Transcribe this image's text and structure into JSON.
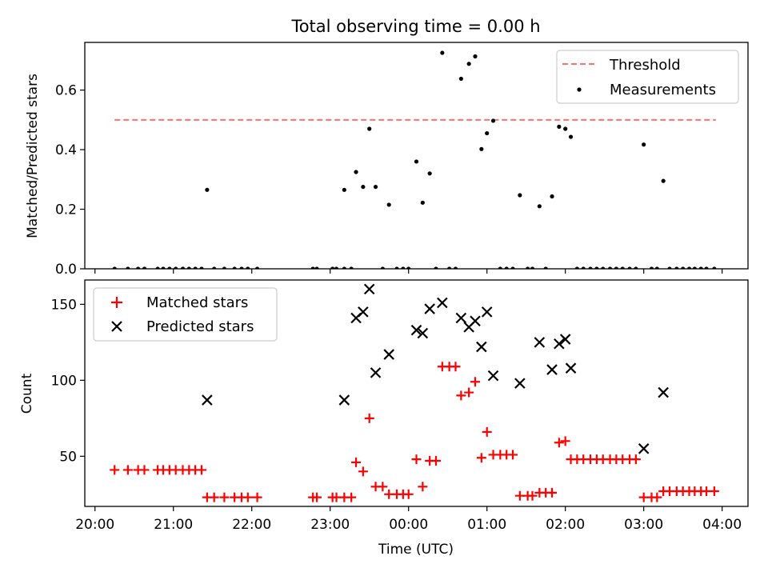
{
  "chart_data": [
    {
      "type": "scatter",
      "title": "Total observing time = 0.00 h",
      "xlabel": "",
      "ylabel": "Matched/Predicted stars",
      "ylim": [
        0,
        0.76
      ],
      "yticks": [
        "0.0",
        "0.2",
        "0.4",
        "0.6"
      ],
      "legend": {
        "placement": "top-right",
        "entries": [
          "Threshold",
          "Measurements"
        ]
      },
      "threshold": {
        "name": "Threshold",
        "value": 0.5,
        "x_start_h": 20.25,
        "x_end_h": 27.92,
        "color": "#ff7070",
        "style": "dashed"
      },
      "series": [
        {
          "name": "Measurements",
          "color": "#000000",
          "points": [
            [
              20.25,
              0
            ],
            [
              20.42,
              0
            ],
            [
              20.55,
              0
            ],
            [
              20.63,
              0
            ],
            [
              20.8,
              0
            ],
            [
              20.87,
              0
            ],
            [
              20.95,
              0
            ],
            [
              21.03,
              0
            ],
            [
              21.12,
              0
            ],
            [
              21.2,
              0
            ],
            [
              21.28,
              0
            ],
            [
              21.36,
              0
            ],
            [
              21.43,
              0.265
            ],
            [
              21.52,
              0
            ],
            [
              21.65,
              0
            ],
            [
              21.78,
              0
            ],
            [
              21.87,
              0
            ],
            [
              21.95,
              0
            ],
            [
              22.07,
              0
            ],
            [
              22.78,
              0
            ],
            [
              22.83,
              0
            ],
            [
              23.03,
              0
            ],
            [
              23.08,
              0
            ],
            [
              23.18,
              0.265
            ],
            [
              23.18,
              0
            ],
            [
              23.27,
              0
            ],
            [
              23.33,
              0.325
            ],
            [
              23.42,
              0.275
            ],
            [
              23.5,
              0.47
            ],
            [
              23.58,
              0.275
            ],
            [
              23.67,
              0
            ],
            [
              23.75,
              0.215
            ],
            [
              23.85,
              0
            ],
            [
              23.93,
              0
            ],
            [
              24.0,
              0
            ],
            [
              24.1,
              0.36
            ],
            [
              24.18,
              0.222
            ],
            [
              24.27,
              0.32
            ],
            [
              24.35,
              0
            ],
            [
              24.43,
              0.725
            ],
            [
              24.52,
              0
            ],
            [
              24.6,
              0
            ],
            [
              24.67,
              0.638
            ],
            [
              24.77,
              0.688
            ],
            [
              24.85,
              0.713
            ],
            [
              24.93,
              0.402
            ],
            [
              25.0,
              0.455
            ],
            [
              25.08,
              0.497
            ],
            [
              25.17,
              0
            ],
            [
              25.25,
              0
            ],
            [
              25.33,
              0
            ],
            [
              25.42,
              0.247
            ],
            [
              25.52,
              0
            ],
            [
              25.58,
              0
            ],
            [
              25.67,
              0.21
            ],
            [
              25.75,
              0
            ],
            [
              25.83,
              0.243
            ],
            [
              25.92,
              0.477
            ],
            [
              26.0,
              0.47
            ],
            [
              26.07,
              0.443
            ],
            [
              26.15,
              0
            ],
            [
              26.23,
              0
            ],
            [
              26.32,
              0
            ],
            [
              26.4,
              0
            ],
            [
              26.48,
              0
            ],
            [
              26.57,
              0
            ],
            [
              26.65,
              0
            ],
            [
              26.73,
              0
            ],
            [
              26.82,
              0
            ],
            [
              26.9,
              0
            ],
            [
              27.0,
              0.417
            ],
            [
              27.1,
              0
            ],
            [
              27.17,
              0
            ],
            [
              27.25,
              0.295
            ],
            [
              27.33,
              0
            ],
            [
              27.42,
              0
            ],
            [
              27.5,
              0
            ],
            [
              27.58,
              0
            ],
            [
              27.65,
              0
            ],
            [
              27.73,
              0
            ],
            [
              27.8,
              0
            ],
            [
              27.9,
              0
            ]
          ]
        }
      ]
    },
    {
      "type": "scatter",
      "title": "",
      "xlabel": "Time (UTC)",
      "ylabel": "Count",
      "ylim": [
        17,
        166
      ],
      "yticks": [
        "50",
        "100",
        "150"
      ],
      "xlim_h": [
        19.87,
        28.33
      ],
      "xticks": [
        "20:00",
        "21:00",
        "22:00",
        "23:00",
        "00:00",
        "01:00",
        "02:00",
        "03:00",
        "04:00"
      ],
      "legend": {
        "placement": "top-left",
        "entries": [
          "Matched stars",
          "Predicted stars"
        ]
      },
      "series": [
        {
          "name": "Matched stars",
          "marker": "plus",
          "color": "#ff0000",
          "points": [
            [
              20.25,
              41
            ],
            [
              20.42,
              41
            ],
            [
              20.55,
              41
            ],
            [
              20.63,
              41
            ],
            [
              20.8,
              41
            ],
            [
              20.87,
              41
            ],
            [
              20.95,
              41
            ],
            [
              21.03,
              41
            ],
            [
              21.12,
              41
            ],
            [
              21.2,
              41
            ],
            [
              21.28,
              41
            ],
            [
              21.36,
              41
            ],
            [
              21.43,
              23
            ],
            [
              21.52,
              23
            ],
            [
              21.65,
              23
            ],
            [
              21.78,
              23
            ],
            [
              21.87,
              23
            ],
            [
              21.95,
              23
            ],
            [
              22.07,
              23
            ],
            [
              22.78,
              23
            ],
            [
              22.83,
              23
            ],
            [
              23.03,
              23
            ],
            [
              23.08,
              23
            ],
            [
              23.18,
              23
            ],
            [
              23.27,
              23
            ],
            [
              23.33,
              46
            ],
            [
              23.42,
              40
            ],
            [
              23.5,
              75
            ],
            [
              23.58,
              30
            ],
            [
              23.67,
              30
            ],
            [
              23.75,
              25
            ],
            [
              23.85,
              25
            ],
            [
              23.93,
              25
            ],
            [
              24.0,
              25
            ],
            [
              24.1,
              48
            ],
            [
              24.18,
              30
            ],
            [
              24.27,
              47
            ],
            [
              24.35,
              47
            ],
            [
              24.43,
              109
            ],
            [
              24.52,
              109
            ],
            [
              24.6,
              109
            ],
            [
              24.67,
              90
            ],
            [
              24.77,
              92
            ],
            [
              24.85,
              99
            ],
            [
              24.93,
              49
            ],
            [
              25.0,
              66
            ],
            [
              25.08,
              51
            ],
            [
              25.17,
              51
            ],
            [
              25.25,
              51
            ],
            [
              25.33,
              51
            ],
            [
              25.42,
              24
            ],
            [
              25.52,
              24
            ],
            [
              25.58,
              24
            ],
            [
              25.67,
              26
            ],
            [
              25.75,
              26
            ],
            [
              25.83,
              26
            ],
            [
              25.92,
              59
            ],
            [
              26.0,
              60
            ],
            [
              26.07,
              48
            ],
            [
              26.15,
              48
            ],
            [
              26.23,
              48
            ],
            [
              26.32,
              48
            ],
            [
              26.4,
              48
            ],
            [
              26.48,
              48
            ],
            [
              26.57,
              48
            ],
            [
              26.65,
              48
            ],
            [
              26.73,
              48
            ],
            [
              26.82,
              48
            ],
            [
              26.9,
              48
            ],
            [
              27.0,
              23
            ],
            [
              27.1,
              23
            ],
            [
              27.17,
              23
            ],
            [
              27.25,
              27
            ],
            [
              27.33,
              27
            ],
            [
              27.42,
              27
            ],
            [
              27.5,
              27
            ],
            [
              27.58,
              27
            ],
            [
              27.65,
              27
            ],
            [
              27.73,
              27
            ],
            [
              27.8,
              27
            ],
            [
              27.9,
              27
            ]
          ]
        },
        {
          "name": "Predicted stars",
          "marker": "x",
          "color": "#000000",
          "points": [
            [
              21.43,
              87
            ],
            [
              23.18,
              87
            ],
            [
              23.33,
              141
            ],
            [
              23.42,
              145
            ],
            [
              23.5,
              160
            ],
            [
              23.58,
              105
            ],
            [
              23.75,
              117
            ],
            [
              24.1,
              133
            ],
            [
              24.18,
              131
            ],
            [
              24.27,
              147
            ],
            [
              24.43,
              151
            ],
            [
              24.67,
              141
            ],
            [
              24.77,
              135
            ],
            [
              24.85,
              139
            ],
            [
              24.93,
              122
            ],
            [
              25.0,
              145
            ],
            [
              25.08,
              103
            ],
            [
              25.42,
              98
            ],
            [
              25.67,
              125
            ],
            [
              25.83,
              107
            ],
            [
              25.92,
              124
            ],
            [
              26.0,
              127
            ],
            [
              26.07,
              108
            ],
            [
              27.0,
              55
            ],
            [
              27.25,
              92
            ]
          ]
        }
      ]
    }
  ]
}
